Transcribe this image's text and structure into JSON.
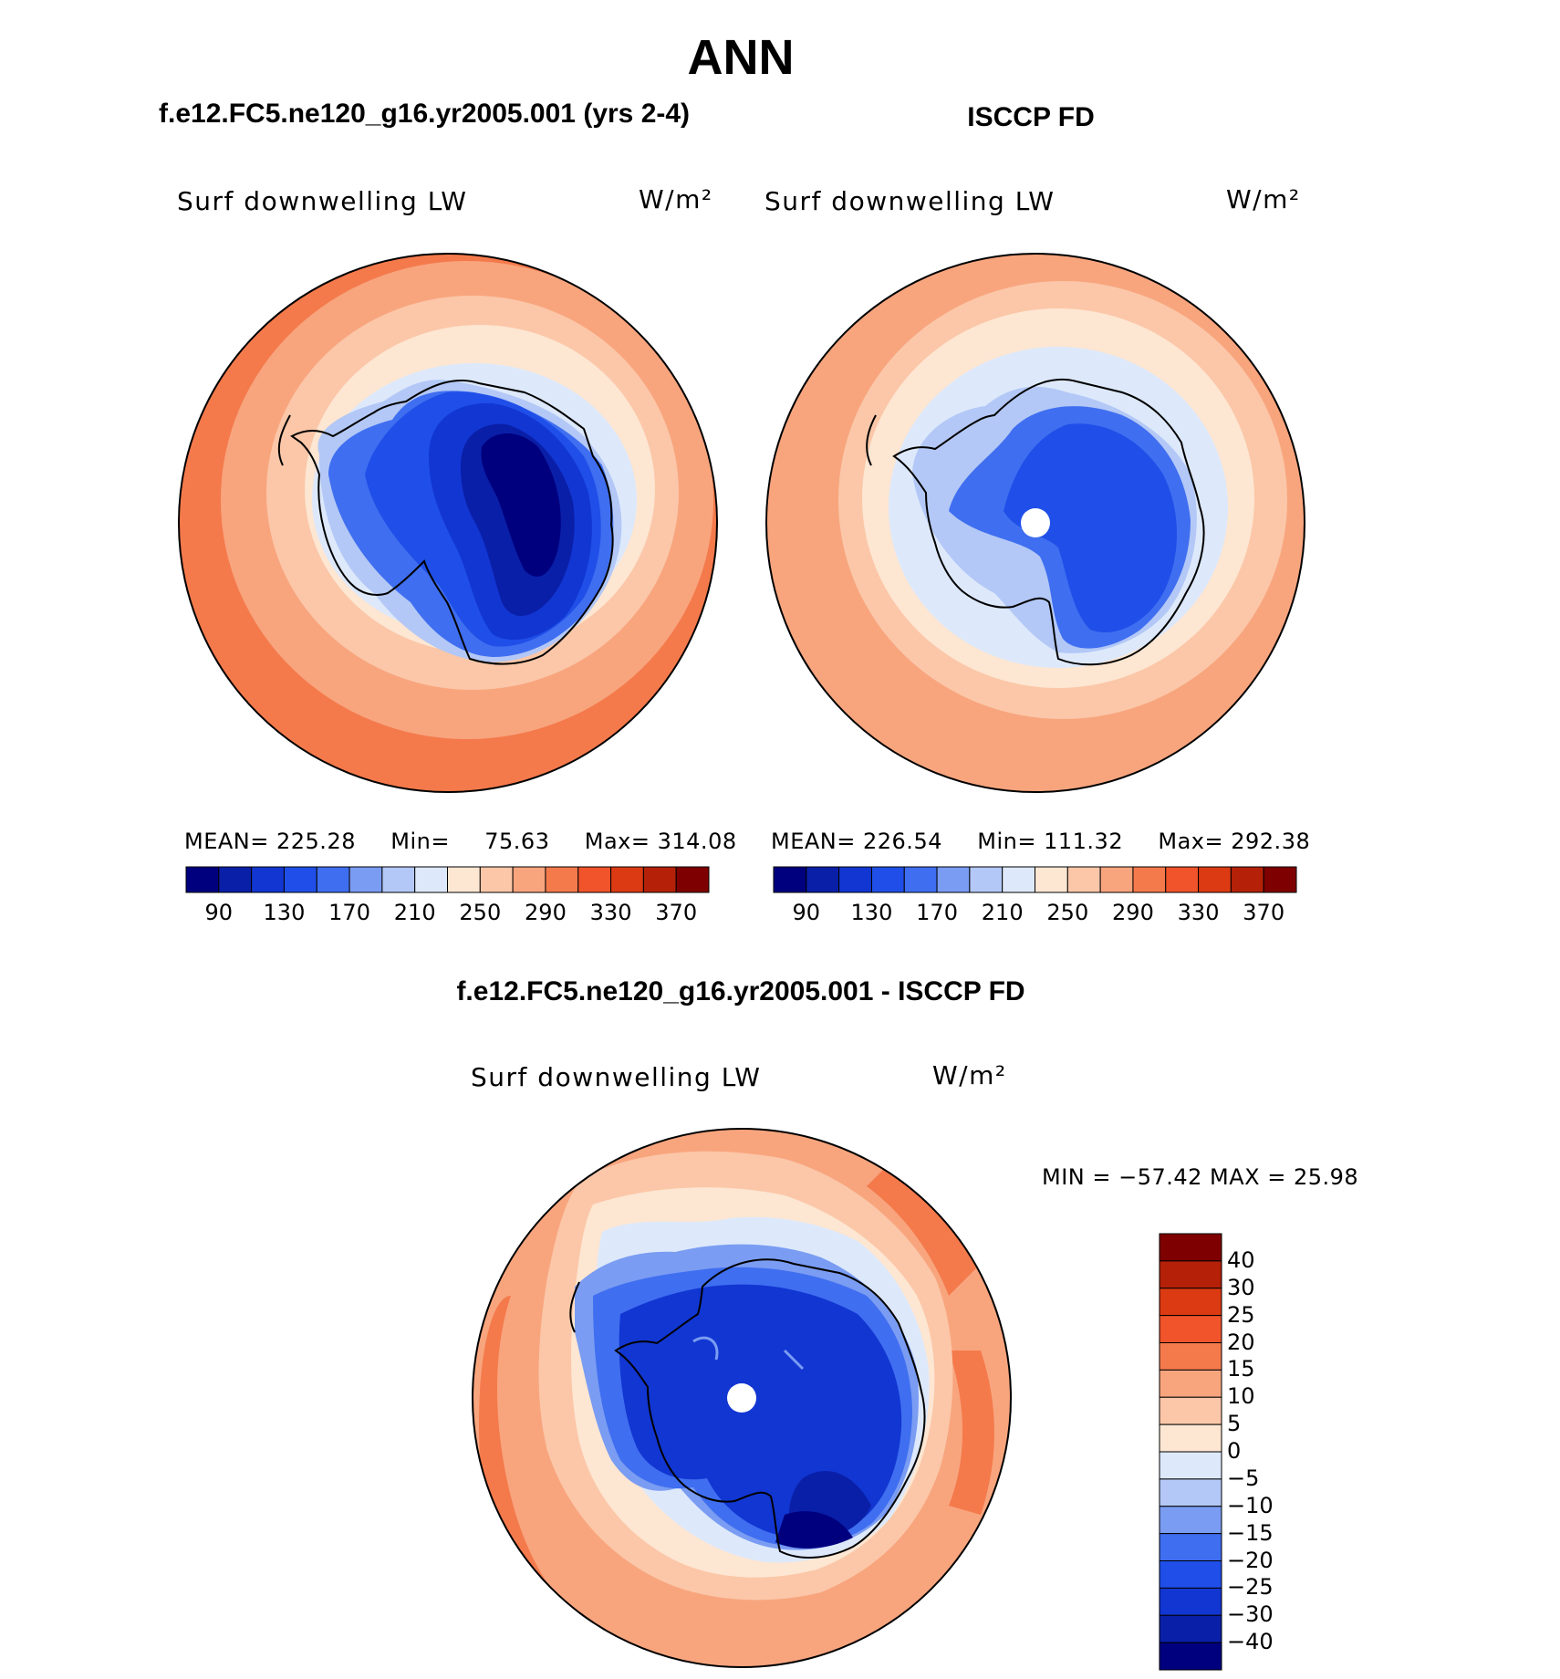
{
  "title": "ANN",
  "panels": {
    "model": {
      "case": "f.e12.FC5.ne120_g16.yr2005.001 (yrs 2-4)",
      "variable": "Surf downwelling LW",
      "units": "W/m²",
      "mean_label": "MEAN=",
      "mean": "225.28",
      "min_label": "Min=",
      "min": "75.63",
      "max_label": "Max=",
      "max": "314.08"
    },
    "obs": {
      "case": "ISCCP FD",
      "variable": "Surf downwelling LW",
      "units": "W/m²",
      "mean_label": "MEAN=",
      "mean": "226.54",
      "min_label": "Min=",
      "min": "111.32",
      "max_label": "Max=",
      "max": "292.38"
    },
    "diff": {
      "case": "f.e12.FC5.ne120_g16.yr2005.001 - ISCCP FD",
      "variable": "Surf downwelling LW",
      "units": "W/m²",
      "minmax": "MIN = −57.42 MAX =   25.98"
    }
  },
  "colorbar_fields": {
    "tick_labels": [
      "90",
      "130",
      "170",
      "210",
      "250",
      "290",
      "330",
      "370"
    ],
    "colors": [
      "#00007f",
      "#0a1fa8",
      "#1236d2",
      "#1f4fe8",
      "#3f6ef0",
      "#7a9cf2",
      "#b3c8f6",
      "#dde9fb",
      "#fde6d2",
      "#fbc7a8",
      "#f8a57e",
      "#f47a4c",
      "#f1542a",
      "#dc3a12",
      "#b42108",
      "#7f0000"
    ]
  },
  "colorbar_diff": {
    "tick_labels": [
      "40",
      "30",
      "25",
      "20",
      "15",
      "10",
      "5",
      "0",
      "−5",
      "−10",
      "−15",
      "−20",
      "−25",
      "−30",
      "−40"
    ],
    "colors": [
      "#7f0000",
      "#b42108",
      "#dc3a12",
      "#f1542a",
      "#f47a4c",
      "#f8a57e",
      "#fbc7a8",
      "#fde6d2",
      "#dde9fb",
      "#b3c8f6",
      "#7a9cf2",
      "#3f6ef0",
      "#1f4fe8",
      "#1236d2",
      "#0a1fa8",
      "#00007f"
    ]
  },
  "chart_data": [
    {
      "type": "heatmap",
      "projection": "south-polar-stereographic",
      "title": "f.e12.FC5.ne120_g16.yr2005.001 (yrs 2-4)",
      "variable": "Surf downwelling LW",
      "units": "W/m2",
      "mean": 225.28,
      "min": 75.63,
      "max": 314.08,
      "levels": [
        90,
        110,
        130,
        150,
        170,
        190,
        210,
        230,
        250,
        270,
        290,
        310,
        330,
        350,
        370
      ]
    },
    {
      "type": "heatmap",
      "projection": "south-polar-stereographic",
      "title": "ISCCP FD",
      "variable": "Surf downwelling LW",
      "units": "W/m2",
      "mean": 226.54,
      "min": 111.32,
      "max": 292.38,
      "levels": [
        90,
        110,
        130,
        150,
        170,
        190,
        210,
        230,
        250,
        270,
        290,
        310,
        330,
        350,
        370
      ]
    },
    {
      "type": "heatmap",
      "projection": "south-polar-stereographic",
      "title": "f.e12.FC5.ne120_g16.yr2005.001 - ISCCP FD",
      "variable": "Surf downwelling LW",
      "units": "W/m2",
      "min": -57.42,
      "max": 25.98,
      "levels": [
        -40,
        -30,
        -25,
        -20,
        -15,
        -10,
        -5,
        0,
        5,
        10,
        15,
        20,
        25,
        30,
        40
      ]
    }
  ]
}
